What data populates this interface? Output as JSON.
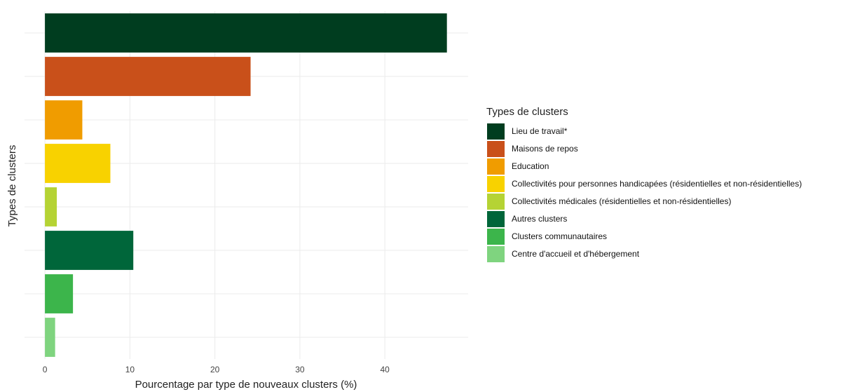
{
  "chart_data": {
    "type": "bar",
    "orientation": "horizontal",
    "x_label": "Pourcentage par type de nouveaux clusters (%)",
    "y_label": "Types de clusters",
    "legend_title": "Types de clusters",
    "categories": [
      "Lieu de travail*",
      "Maisons de repos",
      "Education",
      "Collectivités pour personnes handicapées (résidentielles et non-résidentielles)",
      "Collectivités médicales (résidentielles et non-résidentielles)",
      "Autres clusters",
      "Clusters communautaires",
      "Centre d'accueil et d'hébergement"
    ],
    "values": [
      47.3,
      24.2,
      4.4,
      7.7,
      1.4,
      10.4,
      3.3,
      1.2
    ],
    "colors": [
      "#003d1f",
      "#c9501a",
      "#f09c00",
      "#f8d200",
      "#b5d334",
      "#00663a",
      "#3cb54b",
      "#7fd47f"
    ],
    "xlim": [
      -2.4,
      49.8
    ],
    "xticks": [
      0,
      10,
      20,
      30,
      40
    ],
    "grid": true,
    "legend": "right"
  }
}
